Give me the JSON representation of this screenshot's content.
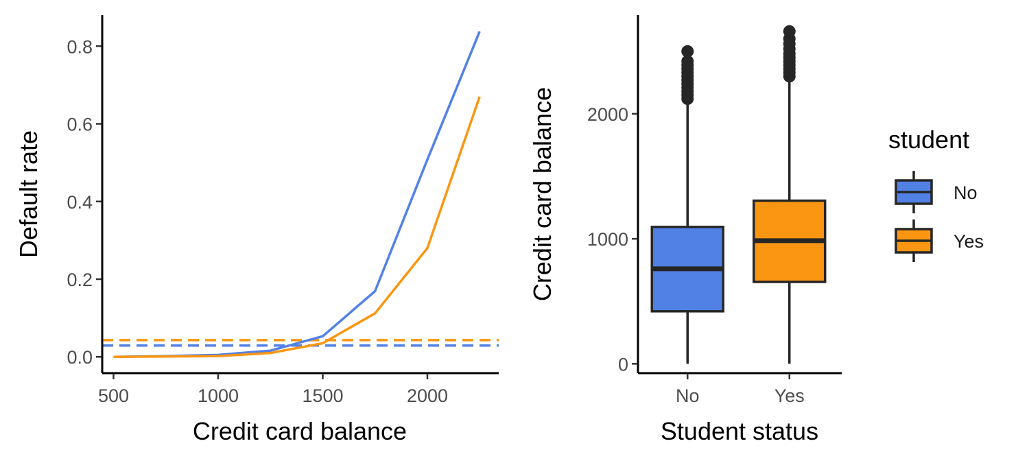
{
  "chart_data": [
    {
      "type": "line",
      "xlabel": "Credit card balance",
      "ylabel": "Default rate",
      "xlim": [
        446,
        2341
      ],
      "ylim": [
        -0.042,
        0.88
      ],
      "x_ticks": [
        "500",
        "1000",
        "1500",
        "2000"
      ],
      "x_tick_values": [
        500,
        1000,
        1500,
        2000
      ],
      "y_ticks": [
        "0.0",
        "0.2",
        "0.4",
        "0.6",
        "0.8"
      ],
      "y_tick_values": [
        0.0,
        0.2,
        0.4,
        0.6,
        0.8
      ],
      "x": [
        500,
        750,
        1000,
        1250,
        1500,
        1750,
        2000,
        2250
      ],
      "series": [
        {
          "group": "No",
          "color": "#5281E6",
          "values": [
            0.0,
            0.002,
            0.005,
            0.016,
            0.053,
            0.169,
            0.508,
            0.838
          ]
        },
        {
          "group": "Yes",
          "color": "#FA9611",
          "values": [
            0.0,
            0.001,
            0.002,
            0.01,
            0.035,
            0.112,
            0.28,
            0.67
          ]
        }
      ],
      "reference_lines": [
        {
          "group": "No",
          "color": "#5281E6",
          "style": "dashed",
          "y": 0.029
        },
        {
          "group": "Yes",
          "color": "#FA9611",
          "style": "dashed",
          "y": 0.043
        }
      ],
      "grid": false
    },
    {
      "type": "boxplot",
      "xlabel": "Student status",
      "ylabel": "Credit card balance",
      "ylim": [
        -75,
        2790
      ],
      "categories": [
        "No",
        "Yes"
      ],
      "y_ticks": [
        "0",
        "1000",
        "2000"
      ],
      "y_tick_values": [
        0,
        1000,
        2000
      ],
      "boxes": [
        {
          "category": "No",
          "color": "#5281E6",
          "min": 0,
          "q1": 420,
          "median": 760,
          "q3": 1095,
          "max": 2110,
          "outliers": [
            2120,
            2150,
            2180,
            2210,
            2240,
            2270,
            2300,
            2330,
            2360,
            2390,
            2420,
            2500
          ]
        },
        {
          "category": "Yes",
          "color": "#FA9611",
          "min": 0,
          "q1": 655,
          "median": 985,
          "q3": 1305,
          "max": 2280,
          "outliers": [
            2300,
            2330,
            2360,
            2390,
            2420,
            2450,
            2480,
            2520,
            2560,
            2600,
            2660
          ]
        }
      ],
      "legend": {
        "title": "student",
        "position": "right",
        "entries": [
          {
            "label": "No",
            "color": "#5281E6"
          },
          {
            "label": "Yes",
            "color": "#FA9611"
          }
        ]
      },
      "grid": false
    }
  ]
}
